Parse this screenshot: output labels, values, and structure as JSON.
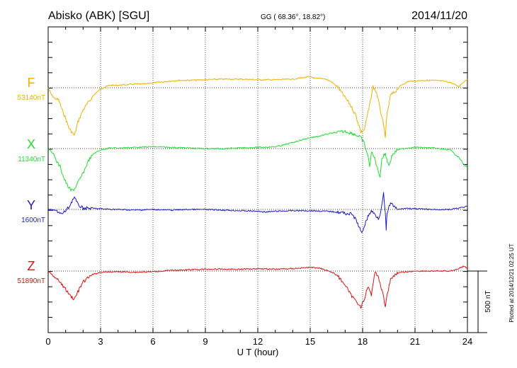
{
  "header": {
    "station": "Abisko (ABK)  [SGU]",
    "coords": "GG ( 68.36°,  18.82°)",
    "date": "2014/11/20"
  },
  "footer": {
    "plotted": "Plotted at 2014/12/21  02:25 UT"
  },
  "chart_data": {
    "type": "line",
    "title": "Abisko (ABK)  [SGU]",
    "xlabel": "U T (hour)",
    "xlim": [
      0,
      24
    ],
    "xticks": [
      "0",
      "3",
      "6",
      "9",
      "12",
      "15",
      "18",
      "21",
      "24"
    ],
    "scale_bar": {
      "label": "500 nT",
      "value_nT": 500
    },
    "grid": true,
    "series": [
      {
        "name": "F",
        "baseline": "53140nT",
        "baseline_nT": 53140,
        "color": "#f0b000",
        "points": [
          [
            0.0,
            53140
          ],
          [
            0.2,
            53080
          ],
          [
            0.4,
            53050
          ],
          [
            0.6,
            53040
          ],
          [
            0.8,
            52960
          ],
          [
            1.0,
            52890
          ],
          [
            1.2,
            52810
          ],
          [
            1.4,
            52770
          ],
          [
            1.5,
            52750
          ],
          [
            1.7,
            52860
          ],
          [
            2.0,
            52960
          ],
          [
            2.3,
            53020
          ],
          [
            2.6,
            53080
          ],
          [
            3.0,
            53130
          ],
          [
            3.5,
            53160
          ],
          [
            4.0,
            53160
          ],
          [
            4.5,
            53165
          ],
          [
            5.0,
            53170
          ],
          [
            5.5,
            53170
          ],
          [
            6.0,
            53180
          ],
          [
            6.5,
            53185
          ],
          [
            7.0,
            53195
          ],
          [
            7.5,
            53200
          ],
          [
            8.0,
            53200
          ],
          [
            9.0,
            53205
          ],
          [
            10.0,
            53210
          ],
          [
            11.0,
            53210
          ],
          [
            12.0,
            53205
          ],
          [
            13.0,
            53205
          ],
          [
            14.0,
            53210
          ],
          [
            14.5,
            53220
          ],
          [
            15.0,
            53230
          ],
          [
            15.3,
            53215
          ],
          [
            15.8,
            53215
          ],
          [
            16.2,
            53190
          ],
          [
            16.6,
            53140
          ],
          [
            17.0,
            53060
          ],
          [
            17.3,
            53000
          ],
          [
            17.6,
            52920
          ],
          [
            17.8,
            52830
          ],
          [
            17.9,
            52780
          ],
          [
            18.1,
            52800
          ],
          [
            18.4,
            53000
          ],
          [
            18.6,
            53150
          ],
          [
            18.8,
            53100
          ],
          [
            19.0,
            52970
          ],
          [
            19.2,
            52830
          ],
          [
            19.3,
            52750
          ],
          [
            19.4,
            52920
          ],
          [
            19.6,
            53080
          ],
          [
            19.8,
            53100
          ],
          [
            20.2,
            53160
          ],
          [
            20.6,
            53190
          ],
          [
            21.0,
            53195
          ],
          [
            21.5,
            53200
          ],
          [
            22.0,
            53200
          ],
          [
            22.5,
            53195
          ],
          [
            23.0,
            53185
          ],
          [
            23.5,
            53150
          ],
          [
            23.8,
            53190
          ],
          [
            24.0,
            53210
          ]
        ]
      },
      {
        "name": "X",
        "baseline": "11340nT",
        "baseline_nT": 11340,
        "color": "#22dd33",
        "points": [
          [
            0.0,
            11340
          ],
          [
            0.3,
            11300
          ],
          [
            0.5,
            11230
          ],
          [
            0.7,
            11190
          ],
          [
            0.9,
            11100
          ],
          [
            1.1,
            11040
          ],
          [
            1.3,
            11000
          ],
          [
            1.5,
            11010
          ],
          [
            1.7,
            11060
          ],
          [
            2.0,
            11140
          ],
          [
            2.3,
            11240
          ],
          [
            2.6,
            11300
          ],
          [
            3.0,
            11330
          ],
          [
            3.5,
            11345
          ],
          [
            4.0,
            11345
          ],
          [
            5.0,
            11350
          ],
          [
            6.0,
            11355
          ],
          [
            7.0,
            11350
          ],
          [
            8.0,
            11345
          ],
          [
            9.0,
            11340
          ],
          [
            10.0,
            11340
          ],
          [
            11.0,
            11345
          ],
          [
            12.0,
            11350
          ],
          [
            13.0,
            11355
          ],
          [
            13.5,
            11370
          ],
          [
            14.0,
            11390
          ],
          [
            14.5,
            11410
          ],
          [
            15.0,
            11430
          ],
          [
            15.5,
            11440
          ],
          [
            16.0,
            11460
          ],
          [
            16.5,
            11470
          ],
          [
            17.0,
            11480
          ],
          [
            17.5,
            11460
          ],
          [
            17.9,
            11430
          ],
          [
            18.1,
            11380
          ],
          [
            18.3,
            11280
          ],
          [
            18.4,
            11200
          ],
          [
            18.5,
            11310
          ],
          [
            18.7,
            11260
          ],
          [
            18.9,
            11150
          ],
          [
            19.0,
            11120
          ],
          [
            19.1,
            11260
          ],
          [
            19.3,
            11300
          ],
          [
            19.5,
            11200
          ],
          [
            19.7,
            11290
          ],
          [
            20.0,
            11330
          ],
          [
            20.5,
            11345
          ],
          [
            21.0,
            11350
          ],
          [
            22.0,
            11345
          ],
          [
            23.0,
            11330
          ],
          [
            23.5,
            11270
          ],
          [
            23.8,
            11210
          ],
          [
            24.0,
            11190
          ]
        ]
      },
      {
        "name": "Y",
        "baseline": "1600nT",
        "baseline_nT": 1600,
        "color": "#1a1acc",
        "points": [
          [
            0.0,
            1600
          ],
          [
            0.5,
            1590
          ],
          [
            0.8,
            1560
          ],
          [
            1.0,
            1590
          ],
          [
            1.2,
            1620
          ],
          [
            1.4,
            1680
          ],
          [
            1.5,
            1700
          ],
          [
            1.7,
            1640
          ],
          [
            2.0,
            1610
          ],
          [
            2.5,
            1610
          ],
          [
            3.0,
            1605
          ],
          [
            4.0,
            1600
          ],
          [
            5.0,
            1595
          ],
          [
            6.0,
            1600
          ],
          [
            7.0,
            1595
          ],
          [
            8.0,
            1600
          ],
          [
            9.0,
            1600
          ],
          [
            10.0,
            1595
          ],
          [
            11.0,
            1590
          ],
          [
            12.0,
            1585
          ],
          [
            12.5,
            1580
          ],
          [
            13.0,
            1585
          ],
          [
            14.0,
            1590
          ],
          [
            15.0,
            1590
          ],
          [
            16.0,
            1585
          ],
          [
            16.5,
            1580
          ],
          [
            17.0,
            1570
          ],
          [
            17.4,
            1560
          ],
          [
            17.6,
            1520
          ],
          [
            17.8,
            1460
          ],
          [
            17.95,
            1400
          ],
          [
            18.1,
            1470
          ],
          [
            18.3,
            1540
          ],
          [
            18.5,
            1590
          ],
          [
            18.7,
            1560
          ],
          [
            18.9,
            1530
          ],
          [
            19.0,
            1560
          ],
          [
            19.1,
            1650
          ],
          [
            19.2,
            1730
          ],
          [
            19.3,
            1560
          ],
          [
            19.35,
            1440
          ],
          [
            19.4,
            1560
          ],
          [
            19.6,
            1660
          ],
          [
            19.8,
            1620
          ],
          [
            20.0,
            1600
          ],
          [
            20.5,
            1610
          ],
          [
            21.0,
            1605
          ],
          [
            22.0,
            1600
          ],
          [
            23.0,
            1600
          ],
          [
            23.5,
            1610
          ],
          [
            24.0,
            1625
          ]
        ]
      },
      {
        "name": "Z",
        "baseline": "51890nT",
        "baseline_nT": 51890,
        "color": "#dd1111",
        "points": [
          [
            0.0,
            51890
          ],
          [
            0.3,
            51850
          ],
          [
            0.6,
            51810
          ],
          [
            0.9,
            51760
          ],
          [
            1.2,
            51700
          ],
          [
            1.5,
            51660
          ],
          [
            1.7,
            51720
          ],
          [
            2.0,
            51800
          ],
          [
            2.5,
            51860
          ],
          [
            3.0,
            51880
          ],
          [
            4.0,
            51885
          ],
          [
            5.0,
            51880
          ],
          [
            6.0,
            51885
          ],
          [
            7.0,
            51895
          ],
          [
            8.0,
            51900
          ],
          [
            9.0,
            51905
          ],
          [
            10.0,
            51905
          ],
          [
            11.0,
            51905
          ],
          [
            12.0,
            51910
          ],
          [
            13.0,
            51905
          ],
          [
            14.0,
            51910
          ],
          [
            14.5,
            51915
          ],
          [
            15.0,
            51920
          ],
          [
            15.5,
            51915
          ],
          [
            16.0,
            51895
          ],
          [
            16.5,
            51860
          ],
          [
            17.0,
            51780
          ],
          [
            17.3,
            51700
          ],
          [
            17.6,
            51650
          ],
          [
            17.8,
            51620
          ],
          [
            17.9,
            51600
          ],
          [
            18.1,
            51660
          ],
          [
            18.3,
            51760
          ],
          [
            18.5,
            51700
          ],
          [
            18.7,
            51880
          ],
          [
            18.9,
            51850
          ],
          [
            19.0,
            51790
          ],
          [
            19.2,
            51680
          ],
          [
            19.3,
            51600
          ],
          [
            19.4,
            51700
          ],
          [
            19.6,
            51820
          ],
          [
            19.9,
            51870
          ],
          [
            20.3,
            51880
          ],
          [
            21.0,
            51890
          ],
          [
            22.0,
            51890
          ],
          [
            23.0,
            51890
          ],
          [
            23.5,
            51910
          ],
          [
            23.8,
            51930
          ],
          [
            24.0,
            51910
          ]
        ]
      }
    ]
  }
}
